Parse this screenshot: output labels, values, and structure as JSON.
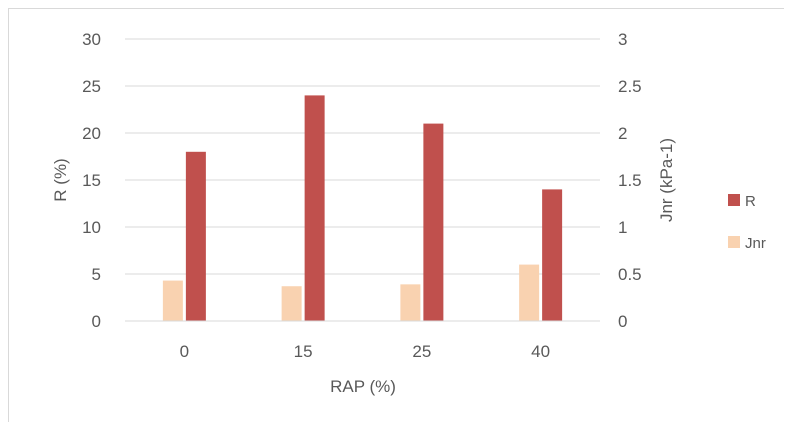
{
  "chart_data": {
    "type": "bar",
    "categories": [
      "0",
      "15",
      "25",
      "40"
    ],
    "series": [
      {
        "name": "Jnr",
        "axis": "right",
        "color": "#f9d2b0",
        "values": [
          0.43,
          0.37,
          0.39,
          0.6
        ]
      },
      {
        "name": "R",
        "axis": "left",
        "color": "#c0504d",
        "values": [
          18,
          24,
          21,
          14
        ]
      }
    ],
    "xlabel": "RAP (%)",
    "ylabel": "R (%)",
    "y2label": "Jnr (kPa-1)",
    "ylim": [
      0,
      30
    ],
    "yticks": [
      "0",
      "5",
      "10",
      "15",
      "20",
      "25",
      "30"
    ],
    "y2lim": [
      0,
      3
    ],
    "y2ticks": [
      "0",
      "0.5",
      "1",
      "1.5",
      "2",
      "2.5",
      "3"
    ],
    "grid": true,
    "legend_position": "right",
    "legend": [
      {
        "name": "R",
        "color": "#c0504d"
      },
      {
        "name": "Jnr",
        "color": "#f9d2b0"
      }
    ]
  }
}
